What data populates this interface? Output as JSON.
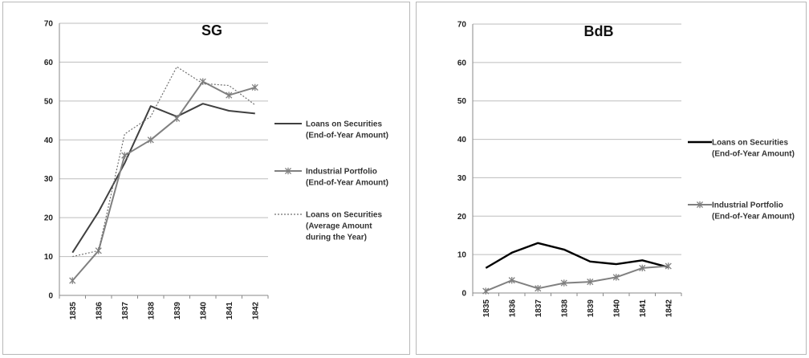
{
  "chart_data": [
    {
      "type": "line",
      "title": "SG",
      "categories": [
        "1835",
        "1836",
        "1837",
        "1838",
        "1839",
        "1840",
        "1841",
        "1842"
      ],
      "ylim": [
        0,
        70
      ],
      "yticks": [
        "0",
        "10",
        "20",
        "30",
        "40",
        "50",
        "60",
        "70"
      ],
      "grid": true,
      "legend_position": "right",
      "series": [
        {
          "name": "Loans on Securities (End-of-Year Amount)",
          "legend_lines": [
            "Loans on Securities",
            "(End-of-Year Amount)"
          ],
          "values": [
            11,
            21.5,
            34,
            48.7,
            46,
            49.3,
            47.5,
            46.8
          ],
          "color": "#404040",
          "style": "solid",
          "marker": "none"
        },
        {
          "name": "Industrial Portfolio (End-of-Year Amount)",
          "legend_lines": [
            "Industrial Portfolio",
            "(End-of-Year Amount)"
          ],
          "values": [
            3.8,
            11.5,
            36,
            40,
            45.5,
            55,
            51.5,
            53.5
          ],
          "color": "#808080",
          "style": "solid",
          "marker": "star"
        },
        {
          "name": "Loans on Securities (Average Amount during the Year)",
          "legend_lines": [
            "Loans on Securities",
            "(Average Amount",
            "during the Year)"
          ],
          "values": [
            10,
            11.5,
            41.5,
            46,
            58.8,
            54.5,
            54,
            49
          ],
          "color": "#707070",
          "style": "dotted",
          "marker": "none"
        }
      ]
    },
    {
      "type": "line",
      "title": "BdB",
      "categories": [
        "1835",
        "1836",
        "1837",
        "1838",
        "1839",
        "1840",
        "1841",
        "1842"
      ],
      "ylim": [
        0,
        70
      ],
      "yticks": [
        "0",
        "10",
        "20",
        "30",
        "40",
        "50",
        "60",
        "70"
      ],
      "grid": true,
      "legend_position": "right",
      "series": [
        {
          "name": "Loans on Securities (End-of-Year Amount)",
          "legend_lines": [
            "Loans on Securities",
            "(End-of-Year Amount)"
          ],
          "values": [
            6.5,
            10.5,
            13,
            11.3,
            8.2,
            7.5,
            8.5,
            6.7
          ],
          "color": "#000000",
          "style": "solid",
          "marker": "none"
        },
        {
          "name": "Industrial Portfolio (End-of-Year Amount)",
          "legend_lines": [
            "Industrial Portfolio",
            "(End-of-Year Amount)"
          ],
          "values": [
            0.5,
            3.3,
            1.2,
            2.6,
            2.9,
            4.1,
            6.5,
            7
          ],
          "color": "#808080",
          "style": "solid",
          "marker": "star"
        }
      ]
    }
  ]
}
